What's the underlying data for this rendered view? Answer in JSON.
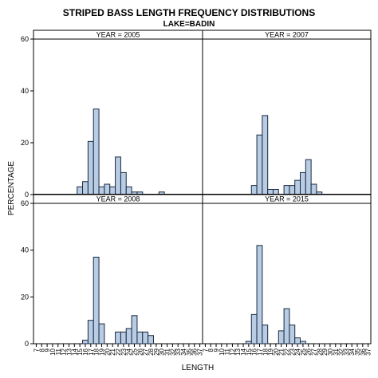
{
  "chart_data": {
    "type": "bar",
    "title": "STRIPED BASS LENGTH FREQUENCY DISTRIBUTIONS",
    "subtitle": "LAKE=BADIN",
    "xlabel": "LENGTH",
    "ylabel": "PERCENTAGE",
    "ylim": [
      0,
      60
    ],
    "yticks": [
      0,
      20,
      40,
      60
    ],
    "xticks": [
      "7",
      "8",
      "9",
      "10",
      "11",
      "12",
      "13",
      "14",
      "15",
      "16",
      "17",
      "18",
      "19",
      "20",
      "21",
      "22",
      "23",
      "24",
      "25",
      "26",
      "27",
      "28",
      "29",
      "30",
      "31",
      "32",
      "33",
      "34",
      "35",
      "36",
      "37"
    ],
    "bar_color": "#b8cce4",
    "bar_edge_color": "#1a2a40",
    "panels": [
      {
        "label": "YEAR = 2005",
        "bars": [
          {
            "x": 15,
            "value": 3
          },
          {
            "x": 16,
            "value": 5
          },
          {
            "x": 17,
            "value": 20.5
          },
          {
            "x": 18,
            "value": 33
          },
          {
            "x": 19,
            "value": 3
          },
          {
            "x": 20,
            "value": 4
          },
          {
            "x": 21,
            "value": 3
          },
          {
            "x": 22,
            "value": 14.5
          },
          {
            "x": 23,
            "value": 8.5
          },
          {
            "x": 24,
            "value": 3
          },
          {
            "x": 25,
            "value": 1
          },
          {
            "x": 26,
            "value": 1
          },
          {
            "x": 30,
            "value": 1
          }
        ]
      },
      {
        "label": "YEAR = 2007",
        "bars": [
          {
            "x": 16,
            "value": 3.5
          },
          {
            "x": 17,
            "value": 23
          },
          {
            "x": 18,
            "value": 30.5
          },
          {
            "x": 19,
            "value": 2
          },
          {
            "x": 20,
            "value": 2
          },
          {
            "x": 22,
            "value": 3.5
          },
          {
            "x": 23,
            "value": 3.5
          },
          {
            "x": 24,
            "value": 5.5
          },
          {
            "x": 25,
            "value": 8.5
          },
          {
            "x": 26,
            "value": 13.5
          },
          {
            "x": 27,
            "value": 4
          },
          {
            "x": 28,
            "value": 1
          }
        ]
      },
      {
        "label": "YEAR = 2008",
        "bars": [
          {
            "x": 16,
            "value": 1.5
          },
          {
            "x": 17,
            "value": 10
          },
          {
            "x": 18,
            "value": 37
          },
          {
            "x": 19,
            "value": 8.5
          },
          {
            "x": 22,
            "value": 5
          },
          {
            "x": 23,
            "value": 5
          },
          {
            "x": 24,
            "value": 6.5
          },
          {
            "x": 25,
            "value": 12
          },
          {
            "x": 26,
            "value": 5
          },
          {
            "x": 27,
            "value": 5
          },
          {
            "x": 28,
            "value": 3.5
          }
        ]
      },
      {
        "label": "YEAR = 2015",
        "bars": [
          {
            "x": 15,
            "value": 1
          },
          {
            "x": 16,
            "value": 12.5
          },
          {
            "x": 17,
            "value": 42
          },
          {
            "x": 18,
            "value": 8
          },
          {
            "x": 21,
            "value": 5.5
          },
          {
            "x": 22,
            "value": 15
          },
          {
            "x": 23,
            "value": 8
          },
          {
            "x": 24,
            "value": 2.5
          },
          {
            "x": 25,
            "value": 1
          }
        ]
      }
    ]
  }
}
